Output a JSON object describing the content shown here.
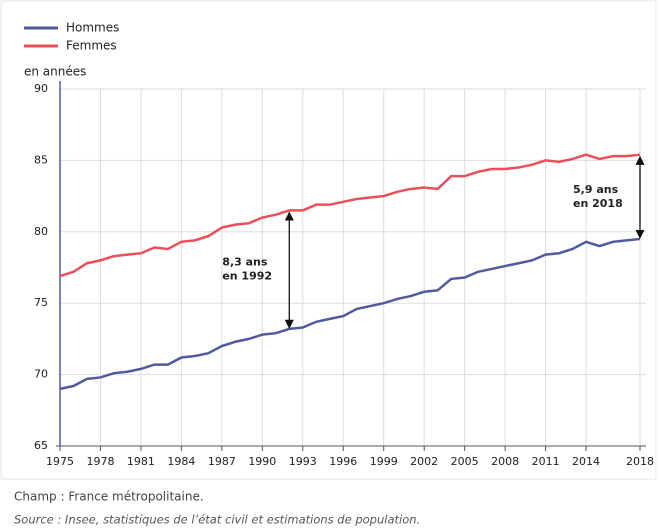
{
  "chart_data": {
    "type": "line",
    "y_axis_label": "en années",
    "x": [
      1975,
      1976,
      1977,
      1978,
      1979,
      1980,
      1981,
      1982,
      1983,
      1984,
      1985,
      1986,
      1987,
      1988,
      1989,
      1990,
      1991,
      1992,
      1993,
      1994,
      1995,
      1996,
      1997,
      1998,
      1999,
      2000,
      2001,
      2002,
      2003,
      2004,
      2005,
      2006,
      2007,
      2008,
      2009,
      2010,
      2011,
      2012,
      2013,
      2014,
      2015,
      2016,
      2017,
      2018
    ],
    "series": [
      {
        "name": "Hommes",
        "color": "#4f5b9e",
        "values": [
          69.0,
          69.2,
          69.7,
          69.8,
          70.1,
          70.2,
          70.4,
          70.7,
          70.7,
          71.2,
          71.3,
          71.5,
          72.0,
          72.3,
          72.5,
          72.8,
          72.9,
          73.2,
          73.3,
          73.7,
          73.9,
          74.1,
          74.6,
          74.8,
          75.0,
          75.3,
          75.5,
          75.8,
          75.9,
          76.7,
          76.8,
          77.2,
          77.4,
          77.6,
          77.8,
          78.0,
          78.4,
          78.5,
          78.8,
          79.3,
          79.0,
          79.3,
          79.4,
          79.5
        ]
      },
      {
        "name": "Femmes",
        "color": "#e8505b",
        "values": [
          76.9,
          77.2,
          77.8,
          78.0,
          78.3,
          78.4,
          78.5,
          78.9,
          78.8,
          79.3,
          79.4,
          79.7,
          80.3,
          80.5,
          80.6,
          81.0,
          81.2,
          81.5,
          81.5,
          81.9,
          81.9,
          82.1,
          82.3,
          82.4,
          82.5,
          82.8,
          83.0,
          83.1,
          83.0,
          83.9,
          83.9,
          84.2,
          84.4,
          84.4,
          84.5,
          84.7,
          85.0,
          84.9,
          85.1,
          85.4,
          85.1,
          85.3,
          85.3,
          85.4
        ]
      }
    ],
    "xlim": [
      1975,
      2018
    ],
    "xticks": [
      1975,
      1978,
      1981,
      1984,
      1987,
      1990,
      1993,
      1996,
      1999,
      2002,
      2005,
      2008,
      2011,
      2014,
      2018
    ],
    "ylim": [
      65,
      90
    ],
    "yticks": [
      65,
      70,
      75,
      80,
      85,
      90
    ],
    "grid": true,
    "legend": "top-left",
    "annotations": [
      {
        "lines": [
          "8,3 ans",
          "en 1992"
        ],
        "x": 1992
      },
      {
        "lines": [
          "5,9 ans",
          "en 2018"
        ],
        "x": 2018
      }
    ]
  },
  "footer": {
    "field": "Champ : France métropolitaine.",
    "source": "Source : Insee, statistiques de l’état civil et estimations de population."
  }
}
